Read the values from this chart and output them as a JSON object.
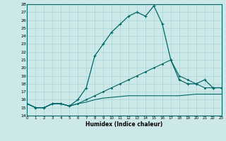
{
  "xlabel": "Humidex (Indice chaleur)",
  "bg_color": "#cce8e8",
  "grid_color": "#aad4d4",
  "line_color": "#006666",
  "x_values": [
    0,
    1,
    2,
    3,
    4,
    5,
    6,
    7,
    8,
    9,
    10,
    11,
    12,
    13,
    14,
    15,
    16,
    17,
    18,
    19,
    20,
    21,
    22,
    23
  ],
  "line1": [
    15.5,
    15.0,
    15.0,
    15.5,
    15.5,
    15.2,
    16.0,
    17.5,
    21.5,
    23.0,
    24.5,
    25.5,
    26.5,
    27.0,
    26.5,
    27.8,
    25.5,
    21.0,
    18.5,
    18.0,
    18.0,
    18.5,
    17.5,
    17.5
  ],
  "line2": [
    15.5,
    15.0,
    15.0,
    15.5,
    15.5,
    15.2,
    15.5,
    16.0,
    16.5,
    17.0,
    17.5,
    18.0,
    18.5,
    19.0,
    19.5,
    20.0,
    20.5,
    21.0,
    19.0,
    18.5,
    18.0,
    17.5,
    17.5,
    17.5
  ],
  "line3": [
    15.5,
    15.0,
    15.0,
    15.5,
    15.5,
    15.2,
    15.5,
    15.7,
    16.0,
    16.2,
    16.3,
    16.4,
    16.5,
    16.5,
    16.5,
    16.5,
    16.5,
    16.5,
    16.5,
    16.6,
    16.7,
    16.7,
    16.7,
    16.7
  ],
  "ylim": [
    14,
    28
  ],
  "xlim": [
    0,
    23
  ],
  "yticks": [
    14,
    15,
    16,
    17,
    18,
    19,
    20,
    21,
    22,
    23,
    24,
    25,
    26,
    27,
    28
  ],
  "xticks": [
    0,
    1,
    2,
    3,
    4,
    5,
    6,
    7,
    8,
    9,
    10,
    11,
    12,
    13,
    14,
    15,
    16,
    17,
    18,
    19,
    20,
    21,
    22,
    23
  ]
}
